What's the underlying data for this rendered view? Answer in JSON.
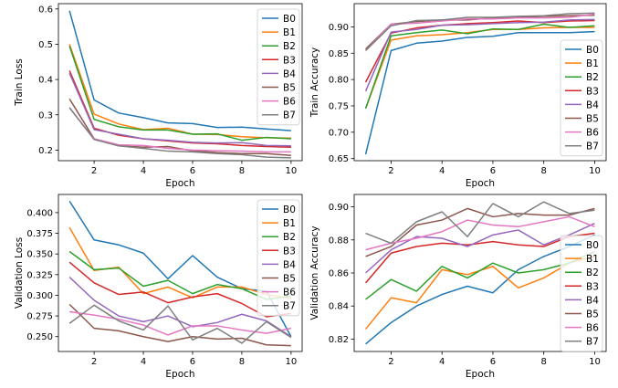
{
  "chart_data": [
    {
      "type": "line",
      "xlabel": "Epoch",
      "ylabel": "Train Loss",
      "xlim": [
        0.55,
        10.45
      ],
      "ylim": [
        0.17,
        0.615
      ],
      "xticks": [
        2,
        4,
        6,
        8,
        10
      ],
      "yticks": [
        0.2,
        0.3,
        0.4,
        0.5,
        0.6
      ],
      "ytick_labels": [
        "0.2",
        "0.3",
        "0.4",
        "0.5",
        "0.6"
      ],
      "legend": "top-right",
      "x": [
        1,
        2,
        3,
        4,
        5,
        6,
        7,
        8,
        9,
        10
      ],
      "series": [
        {
          "name": "B0",
          "color": "#1f77b4",
          "values": [
            0.595,
            0.342,
            0.305,
            0.292,
            0.277,
            0.275,
            0.264,
            0.265,
            0.26,
            0.255
          ]
        },
        {
          "name": "B1",
          "color": "#ff7f0e",
          "values": [
            0.5,
            0.302,
            0.274,
            0.258,
            0.262,
            0.245,
            0.244,
            0.238,
            0.235,
            0.234
          ]
        },
        {
          "name": "B2",
          "color": "#2ca02c",
          "values": [
            0.495,
            0.287,
            0.266,
            0.257,
            0.257,
            0.245,
            0.246,
            0.228,
            0.236,
            0.232
          ]
        },
        {
          "name": "B3",
          "color": "#d62728",
          "values": [
            0.425,
            0.262,
            0.242,
            0.232,
            0.226,
            0.22,
            0.218,
            0.213,
            0.21,
            0.208
          ]
        },
        {
          "name": "B4",
          "color": "#9467bd",
          "values": [
            0.418,
            0.258,
            0.245,
            0.232,
            0.228,
            0.222,
            0.22,
            0.221,
            0.213,
            0.212
          ]
        },
        {
          "name": "B5",
          "color": "#8c564b",
          "values": [
            0.345,
            0.232,
            0.212,
            0.208,
            0.21,
            0.198,
            0.193,
            0.19,
            0.19,
            0.185
          ]
        },
        {
          "name": "B6",
          "color": "#e377c2",
          "values": [
            0.32,
            0.232,
            0.215,
            0.213,
            0.205,
            0.2,
            0.198,
            0.197,
            0.195,
            0.195
          ]
        },
        {
          "name": "B7",
          "color": "#7f7f7f",
          "values": [
            0.32,
            0.23,
            0.212,
            0.205,
            0.197,
            0.195,
            0.19,
            0.187,
            0.18,
            0.178
          ]
        }
      ]
    },
    {
      "type": "line",
      "xlabel": "Epoch",
      "ylabel": "Train Accuracy",
      "xlim": [
        0.55,
        10.45
      ],
      "ylim": [
        0.646,
        0.944
      ],
      "xticks": [
        2,
        4,
        6,
        8,
        10
      ],
      "yticks": [
        0.65,
        0.7,
        0.75,
        0.8,
        0.85,
        0.9
      ],
      "ytick_labels": [
        "0.65",
        "0.70",
        "0.75",
        "0.80",
        "0.85",
        "0.90"
      ],
      "legend": "lower-right",
      "x": [
        1,
        2,
        3,
        4,
        5,
        6,
        7,
        8,
        9,
        10
      ],
      "series": [
        {
          "name": "B0",
          "color": "#1f77b4",
          "values": [
            0.658,
            0.855,
            0.869,
            0.873,
            0.88,
            0.882,
            0.889,
            0.889,
            0.889,
            0.891
          ]
        },
        {
          "name": "B1",
          "color": "#ff7f0e",
          "values": [
            0.745,
            0.875,
            0.883,
            0.885,
            0.889,
            0.895,
            0.895,
            0.898,
            0.899,
            0.899
          ]
        },
        {
          "name": "B2",
          "color": "#2ca02c",
          "values": [
            0.745,
            0.883,
            0.889,
            0.894,
            0.887,
            0.896,
            0.895,
            0.905,
            0.899,
            0.902
          ]
        },
        {
          "name": "B3",
          "color": "#d62728",
          "values": [
            0.795,
            0.888,
            0.898,
            0.903,
            0.906,
            0.908,
            0.911,
            0.908,
            0.911,
            0.912
          ]
        },
        {
          "name": "B4",
          "color": "#9467bd",
          "values": [
            0.778,
            0.89,
            0.895,
            0.903,
            0.904,
            0.906,
            0.908,
            0.909,
            0.913,
            0.914
          ]
        },
        {
          "name": "B5",
          "color": "#8c564b",
          "values": [
            0.858,
            0.905,
            0.91,
            0.913,
            0.913,
            0.917,
            0.918,
            0.92,
            0.921,
            0.922
          ]
        },
        {
          "name": "B6",
          "color": "#e377c2",
          "values": [
            0.855,
            0.905,
            0.907,
            0.911,
            0.915,
            0.915,
            0.917,
            0.917,
            0.918,
            0.924
          ]
        },
        {
          "name": "B7",
          "color": "#7f7f7f",
          "values": [
            0.855,
            0.902,
            0.912,
            0.913,
            0.918,
            0.918,
            0.92,
            0.921,
            0.925,
            0.926
          ]
        }
      ]
    },
    {
      "type": "line",
      "xlabel": "Epoch",
      "ylabel": "Validation Loss",
      "xlim": [
        0.55,
        10.45
      ],
      "ylim": [
        0.232,
        0.422
      ],
      "xticks": [
        2,
        4,
        6,
        8,
        10
      ],
      "yticks": [
        0.25,
        0.275,
        0.3,
        0.325,
        0.35,
        0.375,
        0.4
      ],
      "ytick_labels": [
        "0.250",
        "0.275",
        "0.300",
        "0.325",
        "0.350",
        "0.375",
        "0.400"
      ],
      "legend": "top-right",
      "x": [
        1,
        2,
        3,
        4,
        5,
        6,
        7,
        8,
        9,
        10
      ],
      "series": [
        {
          "name": "B0",
          "color": "#1f77b4",
          "values": [
            0.414,
            0.367,
            0.361,
            0.351,
            0.32,
            0.348,
            0.322,
            0.308,
            0.305,
            0.25
          ]
        },
        {
          "name": "B1",
          "color": "#ff7f0e",
          "values": [
            0.382,
            0.33,
            0.334,
            0.302,
            0.31,
            0.297,
            0.31,
            0.31,
            0.301,
            0.296
          ]
        },
        {
          "name": "B2",
          "color": "#2ca02c",
          "values": [
            0.353,
            0.331,
            0.333,
            0.311,
            0.318,
            0.302,
            0.313,
            0.308,
            0.295,
            0.299
          ]
        },
        {
          "name": "B3",
          "color": "#d62728",
          "values": [
            0.34,
            0.315,
            0.301,
            0.304,
            0.291,
            0.298,
            0.302,
            0.29,
            0.274,
            0.278
          ]
        },
        {
          "name": "B4",
          "color": "#9467bd",
          "values": [
            0.322,
            0.294,
            0.275,
            0.268,
            0.275,
            0.262,
            0.267,
            0.277,
            0.269,
            0.25
          ]
        },
        {
          "name": "B5",
          "color": "#8c564b",
          "values": [
            0.289,
            0.26,
            0.257,
            0.25,
            0.244,
            0.25,
            0.247,
            0.248,
            0.24,
            0.239
          ]
        },
        {
          "name": "B6",
          "color": "#e377c2",
          "values": [
            0.28,
            0.276,
            0.271,
            0.264,
            0.252,
            0.263,
            0.263,
            0.258,
            0.254,
            0.26
          ]
        },
        {
          "name": "B7",
          "color": "#7f7f7f",
          "values": [
            0.266,
            0.288,
            0.269,
            0.258,
            0.287,
            0.246,
            0.26,
            0.242,
            0.268,
            0.249
          ]
        }
      ]
    },
    {
      "type": "line",
      "xlabel": "Epoch",
      "ylabel": "Validation Accuracy",
      "xlim": [
        0.55,
        10.45
      ],
      "ylim": [
        0.8125,
        0.9075
      ],
      "xticks": [
        2,
        4,
        6,
        8,
        10
      ],
      "yticks": [
        0.82,
        0.84,
        0.86,
        0.88,
        0.9
      ],
      "ytick_labels": [
        "0.82",
        "0.84",
        "0.86",
        "0.88",
        "0.90"
      ],
      "legend": "center-right",
      "x": [
        1,
        2,
        3,
        4,
        5,
        6,
        7,
        8,
        9,
        10
      ],
      "series": [
        {
          "name": "B0",
          "color": "#1f77b4",
          "values": [
            0.817,
            0.83,
            0.84,
            0.847,
            0.852,
            0.848,
            0.862,
            0.87,
            0.876,
            0.883
          ]
        },
        {
          "name": "B1",
          "color": "#ff7f0e",
          "values": [
            0.826,
            0.845,
            0.842,
            0.862,
            0.859,
            0.864,
            0.851,
            0.857,
            0.866,
            0.87
          ]
        },
        {
          "name": "B2",
          "color": "#2ca02c",
          "values": [
            0.844,
            0.856,
            0.849,
            0.864,
            0.857,
            0.866,
            0.86,
            0.862,
            0.866,
            0.873
          ]
        },
        {
          "name": "B3",
          "color": "#d62728",
          "values": [
            0.854,
            0.872,
            0.876,
            0.878,
            0.877,
            0.879,
            0.877,
            0.876,
            0.882,
            0.884
          ]
        },
        {
          "name": "B4",
          "color": "#9467bd",
          "values": [
            0.86,
            0.874,
            0.882,
            0.881,
            0.876,
            0.883,
            0.886,
            0.877,
            0.883,
            0.89
          ]
        },
        {
          "name": "B5",
          "color": "#8c564b",
          "values": [
            0.87,
            0.876,
            0.889,
            0.892,
            0.899,
            0.894,
            0.896,
            0.895,
            0.895,
            0.899
          ]
        },
        {
          "name": "B6",
          "color": "#e377c2",
          "values": [
            0.874,
            0.878,
            0.881,
            0.885,
            0.892,
            0.889,
            0.888,
            0.891,
            0.894,
            0.888
          ]
        },
        {
          "name": "B7",
          "color": "#7f7f7f",
          "values": [
            0.884,
            0.878,
            0.891,
            0.897,
            0.882,
            0.902,
            0.894,
            0.903,
            0.896,
            0.898
          ]
        }
      ]
    }
  ]
}
